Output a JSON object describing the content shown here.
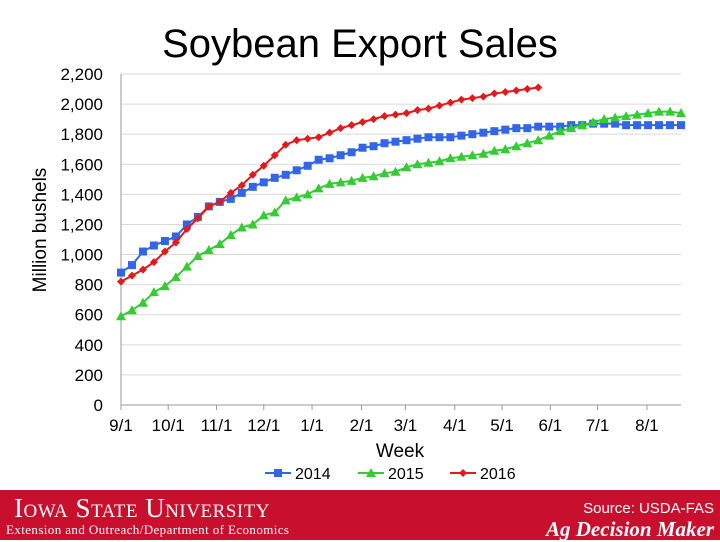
{
  "slide": {
    "title": "Soybean Export Sales"
  },
  "footer": {
    "university": "Iowa State University",
    "department": "Extension and Outreach/Department of Economics",
    "source": "Source: USDA-FAS",
    "brand": "Ag Decision Maker"
  },
  "colors": {
    "series_2014": "#3366e6",
    "series_2015": "#33cc33",
    "series_2016": "#e31a1c",
    "footer_bg": "#c8102e"
  },
  "chart_data": {
    "type": "line",
    "title": "Soybean Export Sales",
    "xlabel": "Week",
    "ylabel": "Million bushels",
    "ylim": [
      0,
      2200
    ],
    "yticks": [
      0,
      200,
      400,
      600,
      800,
      1000,
      1200,
      1400,
      1600,
      1800,
      2000,
      2200
    ],
    "yticklabels": [
      "0",
      "200",
      "400",
      "600",
      "800",
      "1,000",
      "1,200",
      "1,400",
      "1,600",
      "1,800",
      "2,000",
      "2,200"
    ],
    "xtick_labels": [
      "9/1",
      "10/1",
      "11/1",
      "12/1",
      "1/1",
      "2/1",
      "3/1",
      "4/1",
      "5/1",
      "6/1",
      "7/1",
      "8/1"
    ],
    "xtick_weeks": [
      0,
      4.3,
      8.7,
      13,
      17.4,
      21.9,
      25.9,
      30.4,
      34.7,
      39.1,
      43.4,
      47.9
    ],
    "grid": "horizontal",
    "legend_position": "bottom",
    "series": [
      {
        "name": "2014",
        "marker": "square",
        "values": [
          880,
          930,
          1020,
          1060,
          1090,
          1120,
          1200,
          1250,
          1320,
          1350,
          1370,
          1410,
          1450,
          1480,
          1510,
          1530,
          1560,
          1590,
          1630,
          1640,
          1660,
          1680,
          1710,
          1720,
          1740,
          1750,
          1760,
          1770,
          1780,
          1780,
          1780,
          1790,
          1800,
          1810,
          1820,
          1830,
          1840,
          1840,
          1850,
          1850,
          1850,
          1860,
          1860,
          1870,
          1870,
          1870,
          1860,
          1860,
          1860,
          1860,
          1860,
          1860
        ]
      },
      {
        "name": "2015",
        "marker": "triangle",
        "values": [
          590,
          630,
          680,
          750,
          790,
          850,
          920,
          990,
          1030,
          1070,
          1130,
          1180,
          1200,
          1260,
          1280,
          1360,
          1380,
          1400,
          1440,
          1470,
          1480,
          1490,
          1510,
          1520,
          1540,
          1550,
          1580,
          1600,
          1610,
          1620,
          1640,
          1650,
          1660,
          1670,
          1690,
          1700,
          1720,
          1740,
          1760,
          1790,
          1820,
          1840,
          1860,
          1880,
          1900,
          1910,
          1920,
          1930,
          1940,
          1950,
          1950,
          1940
        ]
      },
      {
        "name": "2016",
        "marker": "diamond",
        "values": [
          820,
          860,
          900,
          950,
          1020,
          1080,
          1170,
          1240,
          1320,
          1350,
          1410,
          1460,
          1530,
          1590,
          1660,
          1730,
          1760,
          1770,
          1780,
          1810,
          1840,
          1860,
          1880,
          1900,
          1920,
          1930,
          1940,
          1960,
          1970,
          1990,
          2010,
          2030,
          2040,
          2050,
          2070,
          2080,
          2090,
          2100,
          2110
        ]
      }
    ]
  }
}
